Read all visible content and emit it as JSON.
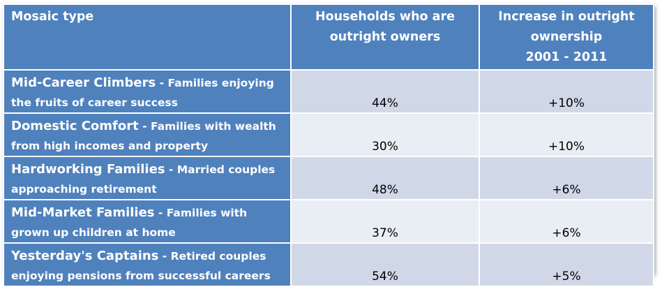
{
  "table": {
    "headers": {
      "mosaic_type": "Mosaic type",
      "outright_owners_line1": "Households who are",
      "outright_owners_line2": "outright owners",
      "increase_line1": "Increase in outright",
      "increase_line2": "ownership",
      "increase_line3": "2001 - 2011"
    },
    "rows": [
      {
        "name": "Mid-Career Climbers",
        "desc": " - Families enjoying the fruits of career success",
        "owners": "44%",
        "increase": "+10%"
      },
      {
        "name": "Domestic Comfort",
        "desc": " - Families with wealth from high incomes and property",
        "owners": "30%",
        "increase": "+10%"
      },
      {
        "name": "Hardworking Families",
        "desc": " - Married couples approaching retirement",
        "owners": "48%",
        "increase": "+6%"
      },
      {
        "name": "Mid-Market Families",
        "desc": " - Families with grown up children at home",
        "owners": "37%",
        "increase": "+6%"
      },
      {
        "name": "Yesterday's Captains",
        "desc": " - Retired couples enjoying pensions from successful careers",
        "owners": "54%",
        "increase": "+5%"
      }
    ]
  },
  "colors": {
    "header_blue": "#4f81bd",
    "band_dark": "#d0d8e8",
    "band_light": "#e9edf4"
  }
}
